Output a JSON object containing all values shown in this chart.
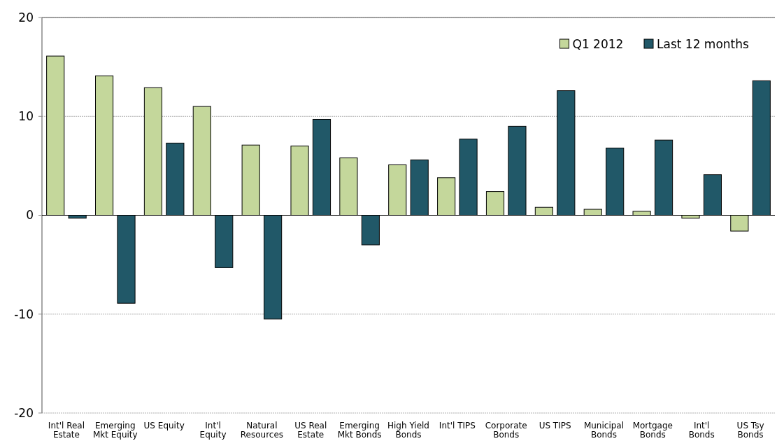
{
  "chart_data": {
    "type": "bar",
    "categories": [
      "Int'l Real Estate",
      "Emerging Mkt Equity",
      "US Equity",
      "Int'l Equity",
      "Natural Resources",
      "US Real Estate",
      "Emerging Mkt Bonds",
      "High Yield Bonds",
      "Int'l TIPS",
      "Corporate Bonds",
      "US TIPS",
      "Municipal Bonds",
      "Mortgage Bonds",
      "Int'l Bonds",
      "US Tsy Bonds"
    ],
    "series": [
      {
        "name": "Q1 2012",
        "color": "#c4d79b",
        "values": [
          16.1,
          14.1,
          12.9,
          11.0,
          7.1,
          7.0,
          5.8,
          5.1,
          3.8,
          2.4,
          0.8,
          0.6,
          0.4,
          -0.3,
          -1.6
        ]
      },
      {
        "name": "Last 12 months",
        "color": "#215868",
        "values": [
          -0.3,
          -8.9,
          7.3,
          -5.3,
          -10.5,
          9.7,
          -3.0,
          5.6,
          7.7,
          9.0,
          12.6,
          6.8,
          7.6,
          4.1,
          13.6
        ]
      }
    ],
    "ylim": [
      -20,
      20
    ],
    "yticks": [
      -20,
      -10,
      0,
      10,
      20
    ],
    "grid": "y",
    "legend": "top right"
  }
}
